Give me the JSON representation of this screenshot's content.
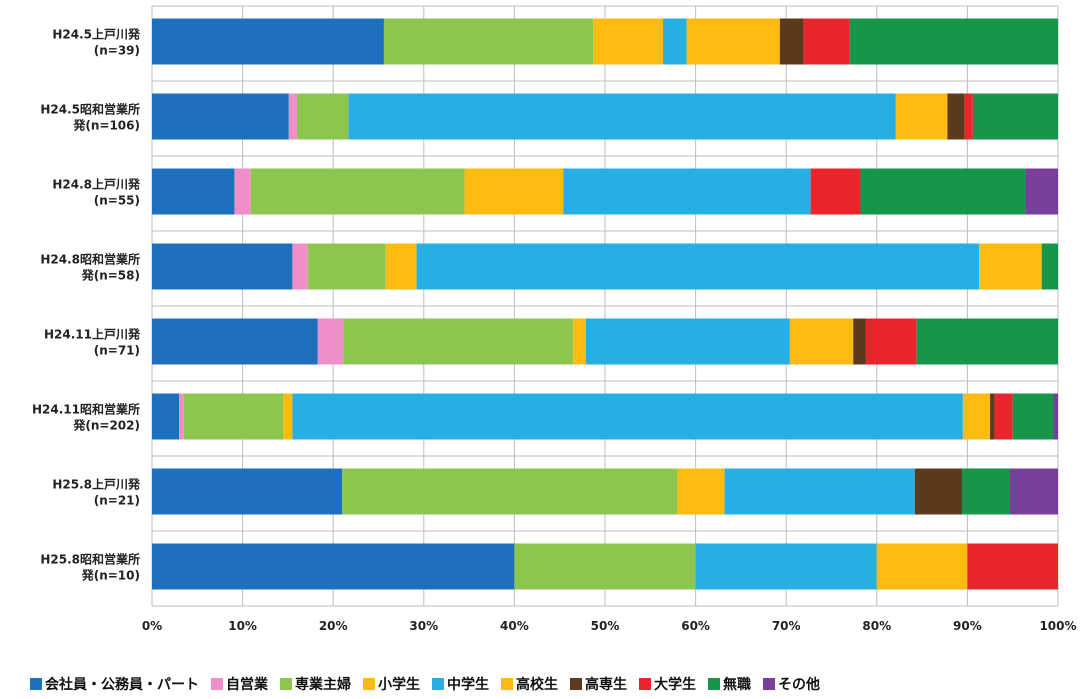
{
  "chart_data": {
    "type": "bar",
    "orientation": "horizontal",
    "stacked": true,
    "percent": true,
    "categories": [
      [
        "H24.5上戸川発",
        "(n=39)"
      ],
      [
        "H24.5昭和営業所",
        "発(n=106)"
      ],
      [
        "H24.8上戸川発",
        "(n=55)"
      ],
      [
        "H24.8昭和営業所",
        "発(n=58)"
      ],
      [
        "H24.11上戸川発",
        "(n=71)"
      ],
      [
        "H24.11昭和営業所",
        "発(n=202)"
      ],
      [
        "H25.8上戸川発",
        "(n=21)"
      ],
      [
        "H25.8昭和営業所",
        "発(n=10)"
      ]
    ],
    "xlim": [
      0,
      100
    ],
    "xticks": [
      "0%",
      "10%",
      "20%",
      "30%",
      "40%",
      "50%",
      "60%",
      "70%",
      "80%",
      "90%",
      "100%"
    ],
    "grid": true,
    "legend_position": "bottom",
    "series": [
      {
        "name": "会社員・公務員・パート",
        "color": "#1f6fbf",
        "values": [
          25.6,
          15.1,
          9.1,
          15.5,
          18.3,
          3.0,
          21.0,
          40.0
        ]
      },
      {
        "name": "自営業",
        "color": "#ef8fc8",
        "values": [
          0.0,
          0.9,
          1.8,
          1.7,
          2.8,
          0.5,
          0.0,
          0.0
        ]
      },
      {
        "name": "専業主婦",
        "color": "#8dc64f",
        "values": [
          23.1,
          5.7,
          23.6,
          8.6,
          25.4,
          11.0,
          37.0,
          20.0
        ]
      },
      {
        "name": "小学生",
        "color": "#fbbb10",
        "values": [
          7.7,
          0.0,
          10.9,
          3.4,
          1.4,
          1.0,
          5.2,
          0.0
        ]
      },
      {
        "name": "中学生",
        "color": "#27aee2",
        "values": [
          2.6,
          60.4,
          27.3,
          62.1,
          22.5,
          74.0,
          21.0,
          20.0
        ]
      },
      {
        "name": "高校生",
        "color": "#fbbb10",
        "values": [
          10.3,
          5.7,
          0.0,
          6.9,
          7.0,
          3.0,
          0.0,
          10.0
        ]
      },
      {
        "name": "高専生",
        "color": "#5e3a1c",
        "values": [
          2.6,
          1.9,
          0.0,
          0.0,
          1.4,
          0.5,
          5.2,
          0.0
        ]
      },
      {
        "name": "大学生",
        "color": "#e8262c",
        "values": [
          5.1,
          0.9,
          5.5,
          0.0,
          5.6,
          2.0,
          0.0,
          10.0
        ]
      },
      {
        "name": "無職",
        "color": "#17964a",
        "values": [
          23.0,
          9.4,
          18.2,
          1.8,
          15.6,
          4.5,
          5.3,
          0.0
        ]
      },
      {
        "name": "その他",
        "color": "#7a3f9a",
        "values": [
          0.0,
          0.0,
          3.6,
          0.0,
          0.0,
          0.5,
          5.3,
          0.0
        ]
      }
    ]
  }
}
